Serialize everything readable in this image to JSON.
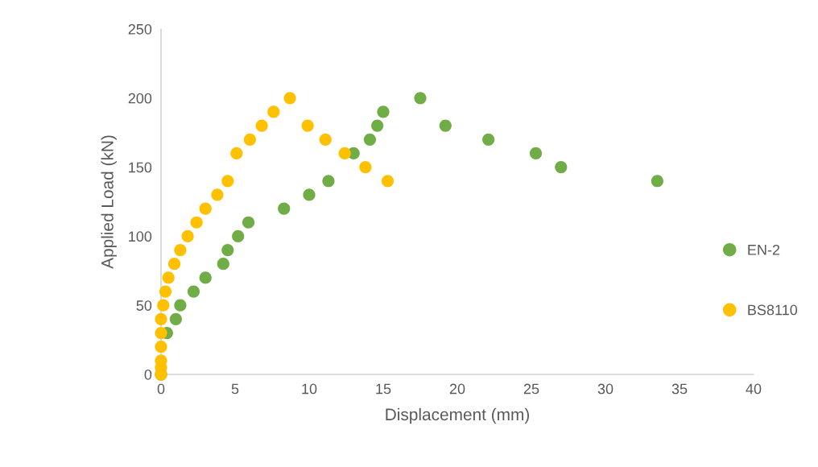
{
  "chart_data": {
    "type": "scatter",
    "xlabel": "Displacement (mm)",
    "ylabel": "Applied Load (kN)",
    "xlim": [
      0,
      40
    ],
    "xticks": [
      0,
      5,
      10,
      15,
      20,
      25,
      30,
      35,
      40
    ],
    "ylim": [
      0,
      250
    ],
    "yticks": [
      0,
      50,
      100,
      150,
      200,
      250
    ],
    "grid": false,
    "legend": "right",
    "marker": "circle",
    "series": [
      {
        "name": "EN-2",
        "color": "#70ad47",
        "x": [
          0,
          0.4,
          1.0,
          1.3,
          2.2,
          3.0,
          4.2,
          4.5,
          5.2,
          5.9,
          8.3,
          10.0,
          11.3,
          13.0,
          14.1,
          14.6,
          15.0,
          17.5,
          19.2,
          22.1,
          25.3,
          27.0,
          33.5
        ],
        "values": [
          0,
          30,
          40,
          50,
          60,
          70,
          80,
          90,
          100,
          110,
          120,
          130,
          140,
          160,
          170,
          180,
          190,
          200,
          180,
          170,
          160,
          150,
          140
        ]
      },
      {
        "name": "BS8110",
        "color": "#ffc000",
        "x": [
          0,
          0,
          0,
          0,
          0,
          0,
          0.15,
          0.3,
          0.5,
          0.9,
          1.3,
          1.8,
          2.4,
          3.0,
          3.8,
          4.5,
          5.1,
          6.0,
          6.8,
          7.6,
          8.7,
          9.9,
          11.1,
          12.4,
          13.8,
          15.3
        ],
        "values": [
          0,
          5,
          10,
          20,
          30,
          40,
          50,
          60,
          70,
          80,
          90,
          100,
          110,
          120,
          130,
          140,
          160,
          170,
          180,
          190,
          200,
          180,
          170,
          160,
          150,
          140
        ]
      }
    ]
  }
}
